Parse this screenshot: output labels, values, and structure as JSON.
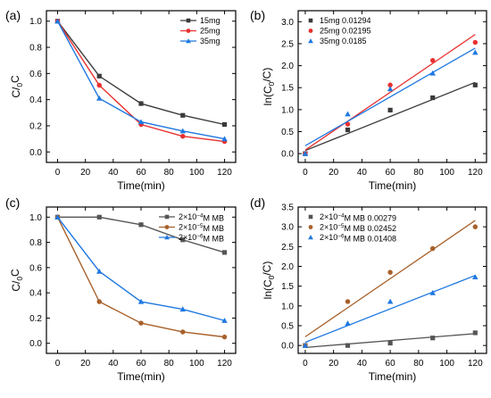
{
  "colors": {
    "black": "#3a3a3a",
    "red": "#e8312f",
    "blue": "#1f78e0",
    "darkgray": "#555555",
    "brown": "#a8602a",
    "fitblue": "#1f78e0"
  },
  "chart_data": [
    {
      "panel": "(a)",
      "type": "line",
      "xlabel": "Time(min)",
      "ylabel": "C/C",
      "ylabel_sub": "0",
      "xlim": [
        -8,
        128
      ],
      "ylim": [
        -0.08,
        1.08
      ],
      "xticks": [
        0,
        20,
        40,
        60,
        80,
        100,
        120
      ],
      "yticks": [
        0.0,
        0.2,
        0.4,
        0.6,
        0.8,
        1.0
      ],
      "ytick_labels": [
        "0.0",
        "0.2",
        "0.4",
        "0.6",
        "0.8",
        "1.0"
      ],
      "legend_position": "top-right",
      "series": [
        {
          "name": "15mg",
          "color": "#3a3a3a",
          "marker": "square",
          "x": [
            0,
            30,
            60,
            90,
            120
          ],
          "values": [
            1.0,
            0.58,
            0.37,
            0.28,
            0.21
          ]
        },
        {
          "name": "25mg",
          "color": "#e8312f",
          "marker": "circle",
          "x": [
            0,
            30,
            60,
            90,
            120
          ],
          "values": [
            1.0,
            0.51,
            0.21,
            0.12,
            0.08
          ]
        },
        {
          "name": "35mg",
          "color": "#1f78e0",
          "marker": "triangle",
          "x": [
            0,
            30,
            60,
            90,
            120
          ],
          "values": [
            1.0,
            0.41,
            0.23,
            0.16,
            0.1
          ]
        }
      ]
    },
    {
      "panel": "(b)",
      "type": "scatter",
      "xlabel": "Time(min)",
      "ylabel": "ln(C/C)",
      "ylabel_parts": [
        "ln(C",
        "0",
        "/C)"
      ],
      "xlim": [
        -5,
        128
      ],
      "ylim": [
        -0.2,
        3.25
      ],
      "xticks": [
        0,
        20,
        40,
        60,
        80,
        100,
        120
      ],
      "yticks": [
        0.0,
        0.5,
        1.0,
        1.5,
        2.0,
        2.5,
        3.0
      ],
      "ytick_labels": [
        "0.0",
        "0.5",
        "1.0",
        "1.5",
        "2.0",
        "2.5",
        "3.0"
      ],
      "legend_position": "top-left",
      "series": [
        {
          "name": "15mg 0.01294",
          "color": "#3a3a3a",
          "marker": "square",
          "x": [
            0,
            30,
            60,
            90,
            120
          ],
          "values": [
            0.0,
            0.54,
            0.99,
            1.27,
            1.56
          ],
          "fit": [
            0.07,
            1.62
          ]
        },
        {
          "name": "25mg 0.02195",
          "color": "#e8312f",
          "marker": "circle",
          "x": [
            0,
            30,
            60,
            90,
            120
          ],
          "values": [
            0.0,
            0.67,
            1.56,
            2.12,
            2.53
          ],
          "fit": [
            0.08,
            2.71
          ]
        },
        {
          "name": "35mg 0.0185",
          "color": "#1f78e0",
          "marker": "triangle",
          "x": [
            0,
            30,
            60,
            90,
            120
          ],
          "values": [
            0.0,
            0.9,
            1.47,
            1.83,
            2.3
          ],
          "fit": [
            0.18,
            2.4
          ]
        }
      ]
    },
    {
      "panel": "(c)",
      "type": "line",
      "xlabel": "Time(min)",
      "ylabel": "C/C",
      "ylabel_sub": "0",
      "xlim": [
        -8,
        128
      ],
      "ylim": [
        -0.08,
        1.08
      ],
      "xticks": [
        0,
        20,
        40,
        60,
        80,
        100,
        120
      ],
      "yticks": [
        0.0,
        0.2,
        0.4,
        0.6,
        0.8,
        1.0
      ],
      "ytick_labels": [
        "0.0",
        "0.2",
        "0.4",
        "0.6",
        "0.8",
        "1.0"
      ],
      "legend_position": "top-right",
      "series": [
        {
          "name_parts": [
            "2×10",
            "−4",
            "M MB"
          ],
          "name": "2×10⁻⁴M MB",
          "color": "#555555",
          "marker": "square",
          "x": [
            0,
            30,
            60,
            90,
            120
          ],
          "values": [
            1.0,
            1.0,
            0.94,
            0.82,
            0.72
          ]
        },
        {
          "name_parts": [
            "2×10",
            "−5",
            "M MB"
          ],
          "name": "2×10⁻⁵M MB",
          "color": "#a8602a",
          "marker": "circle",
          "x": [
            0,
            30,
            60,
            90,
            120
          ],
          "values": [
            1.0,
            0.33,
            0.16,
            0.09,
            0.05
          ]
        },
        {
          "name_parts": [
            "2×10",
            "−6",
            "M MB"
          ],
          "name": "2×10⁻⁶M MB",
          "color": "#1f78e0",
          "marker": "triangle",
          "x": [
            0,
            30,
            60,
            90,
            120
          ],
          "values": [
            1.0,
            0.57,
            0.33,
            0.27,
            0.18
          ]
        }
      ]
    },
    {
      "panel": "(d)",
      "type": "scatter",
      "xlabel": "Time(min)",
      "ylabel": "ln(C/C)",
      "ylabel_parts": [
        "ln(C",
        "0",
        "/C)"
      ],
      "xlim": [
        -5,
        128
      ],
      "ylim": [
        -0.2,
        3.5
      ],
      "xticks": [
        0,
        20,
        40,
        60,
        80,
        100,
        120
      ],
      "yticks": [
        0.0,
        0.5,
        1.0,
        1.5,
        2.0,
        2.5,
        3.0,
        3.5
      ],
      "ytick_labels": [
        "0.0",
        "0.5",
        "1.0",
        "1.5",
        "2.0",
        "2.5",
        "3.0",
        "3.5"
      ],
      "legend_position": "top-left",
      "series": [
        {
          "name_parts": [
            "2×10",
            "−4",
            "M MB 0.00279"
          ],
          "name": "2×10⁻⁴M MB 0.00279",
          "color": "#555555",
          "marker": "square",
          "x": [
            0,
            30,
            60,
            90,
            120
          ],
          "values": [
            0.0,
            0.0,
            0.06,
            0.19,
            0.32
          ],
          "fit": [
            -0.05,
            0.3
          ]
        },
        {
          "name_parts": [
            "2×10",
            "−5",
            "M MB 0.02452"
          ],
          "name": "2×10⁻⁵M MB 0.02452",
          "color": "#a8602a",
          "marker": "circle",
          "x": [
            0,
            30,
            60,
            90,
            120
          ],
          "values": [
            0.0,
            1.11,
            1.85,
            2.45,
            3.0
          ],
          "fit": [
            0.22,
            3.16
          ]
        },
        {
          "name_parts": [
            "2×10",
            "−6",
            "M MB 0.01408"
          ],
          "name": "2×10⁻⁶M MB 0.01408",
          "color": "#1f78e0",
          "marker": "triangle",
          "x": [
            0,
            30,
            60,
            90,
            120
          ],
          "values": [
            0.0,
            0.56,
            1.11,
            1.33,
            1.73
          ],
          "fit": [
            0.08,
            1.77
          ]
        }
      ]
    }
  ]
}
